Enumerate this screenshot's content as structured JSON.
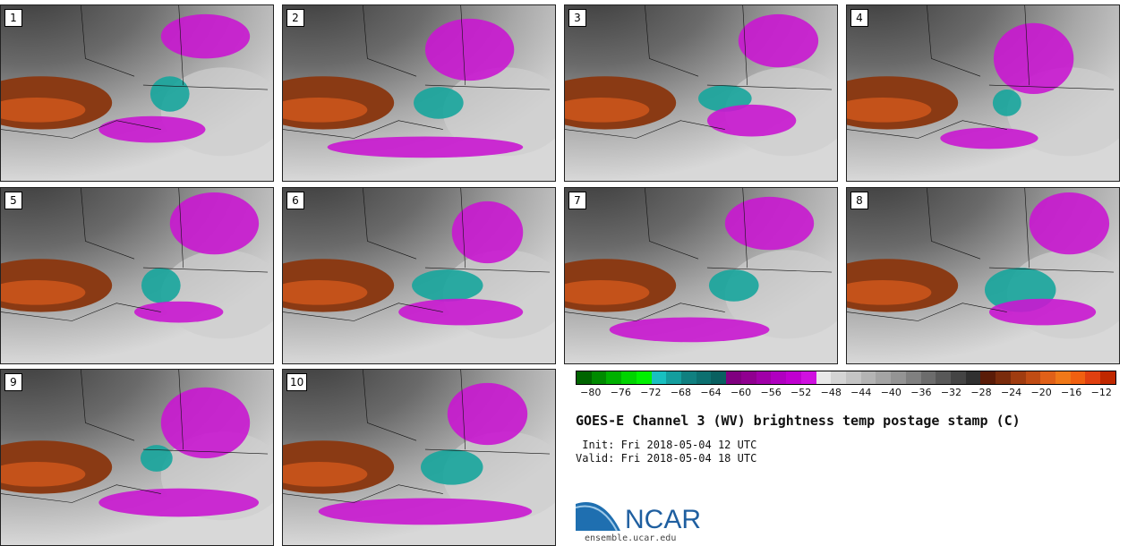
{
  "panels": [
    {
      "label": "1",
      "blobs": [
        [
          190,
          100,
          22,
          20,
          "#17a59c"
        ],
        [
          230,
          35,
          50,
          25,
          "#c917d0"
        ],
        [
          170,
          140,
          60,
          15,
          "#c917d0"
        ]
      ]
    },
    {
      "label": "2",
      "blobs": [
        [
          175,
          110,
          28,
          18,
          "#17a59c"
        ],
        [
          160,
          160,
          110,
          12,
          "#c917d0"
        ],
        [
          210,
          50,
          50,
          35,
          "#c917d0"
        ]
      ]
    },
    {
      "label": "3",
      "blobs": [
        [
          180,
          105,
          30,
          15,
          "#17a59c"
        ],
        [
          210,
          130,
          50,
          18,
          "#c917d0"
        ],
        [
          240,
          40,
          45,
          30,
          "#c917d0"
        ]
      ]
    },
    {
      "label": "4",
      "blobs": [
        [
          180,
          110,
          16,
          15,
          "#17a59c"
        ],
        [
          210,
          60,
          45,
          40,
          "#c917d0"
        ],
        [
          160,
          150,
          55,
          12,
          "#c917d0"
        ]
      ]
    },
    {
      "label": "5",
      "blobs": [
        [
          180,
          110,
          22,
          20,
          "#17a59c"
        ],
        [
          240,
          40,
          50,
          35,
          "#c917d0"
        ],
        [
          200,
          140,
          50,
          12,
          "#c917d0"
        ]
      ]
    },
    {
      "label": "6",
      "blobs": [
        [
          185,
          110,
          40,
          18,
          "#17a59c"
        ],
        [
          200,
          140,
          70,
          15,
          "#c917d0"
        ],
        [
          230,
          50,
          40,
          35,
          "#c917d0"
        ]
      ]
    },
    {
      "label": "7",
      "blobs": [
        [
          190,
          110,
          28,
          18,
          "#17a59c"
        ],
        [
          140,
          160,
          90,
          14,
          "#c917d0"
        ],
        [
          230,
          40,
          50,
          30,
          "#c917d0"
        ]
      ]
    },
    {
      "label": "8",
      "blobs": [
        [
          195,
          115,
          40,
          25,
          "#17a59c"
        ],
        [
          250,
          40,
          45,
          35,
          "#c917d0"
        ],
        [
          220,
          140,
          60,
          15,
          "#c917d0"
        ]
      ]
    },
    {
      "label": "9",
      "blobs": [
        [
          175,
          100,
          18,
          15,
          "#17a59c"
        ],
        [
          200,
          150,
          90,
          16,
          "#c917d0"
        ],
        [
          230,
          60,
          50,
          40,
          "#c917d0"
        ]
      ]
    },
    {
      "label": "10",
      "blobs": [
        [
          190,
          110,
          35,
          20,
          "#17a59c"
        ],
        [
          160,
          160,
          120,
          15,
          "#c917d0"
        ],
        [
          230,
          50,
          45,
          35,
          "#c917d0"
        ]
      ]
    }
  ],
  "colorbar": {
    "colors": [
      "#006400",
      "#008a00",
      "#00b000",
      "#00d400",
      "#00f000",
      "#18c0c0",
      "#149e9e",
      "#108080",
      "#0c7070",
      "#096060",
      "#800080",
      "#900090",
      "#a000a8",
      "#b000c0",
      "#c000d0",
      "#d010e0",
      "#e8e8e8",
      "#d4d4d4",
      "#c4c4c4",
      "#b4b4b4",
      "#a4a4a4",
      "#949494",
      "#808080",
      "#6c6c6c",
      "#585858",
      "#444444",
      "#303030",
      "#5a1c08",
      "#7a2c0c",
      "#a03c10",
      "#c04c14",
      "#e06018",
      "#f07818",
      "#f06010",
      "#e04010",
      "#c02800"
    ],
    "ticks": [
      "−80",
      "−76",
      "−72",
      "−68",
      "−64",
      "−60",
      "−56",
      "−52",
      "−48",
      "−44",
      "−40",
      "−36",
      "−32",
      "−28",
      "−24",
      "−20",
      "−16",
      "−12"
    ]
  },
  "title": "GOES-E Channel 3 (WV) brightness temp postage stamp (C)",
  "init": " Init: Fri 2018-05-04 12 UTC",
  "valid": "Valid: Fri 2018-05-04 18 UTC",
  "logo_text": "NCAR",
  "url": "ensemble.ucar.edu"
}
